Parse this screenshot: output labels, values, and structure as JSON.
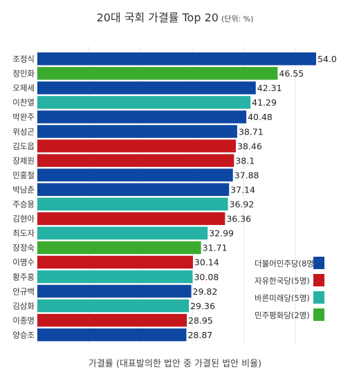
{
  "chart_data": {
    "type": "bar",
    "orientation": "horizontal",
    "title": "20대 국회 가결률 Top 20",
    "subtitle": "(단위: %)",
    "xlabel": "가결률 (대표발의한 법안 중 가결된 법안 비율)",
    "ylabel": "",
    "xlim": [
      0,
      55
    ],
    "grid": true,
    "legend_position": "bottom-right",
    "parties": [
      {
        "name": "더불어민주당(8명)",
        "color": "#0d47a1"
      },
      {
        "name": "자유한국당(5명)",
        "color": "#c6171e"
      },
      {
        "name": "바른미래당(5명)",
        "color": "#26b2a5"
      },
      {
        "name": "민주평화당(2명)",
        "color": "#3aab2e"
      }
    ],
    "categories": [
      "조정식",
      "정인화",
      "오제세",
      "이찬열",
      "박완주",
      "위성곤",
      "김도읍",
      "장제원",
      "민홍철",
      "박남춘",
      "주승용",
      "김현아",
      "최도자",
      "장정숙",
      "이명수",
      "황주홍",
      "안규백",
      "김삼화",
      "이종명",
      "양승조"
    ],
    "values": [
      54.0,
      46.55,
      42.31,
      41.29,
      40.48,
      38.71,
      38.46,
      38.1,
      37.88,
      37.14,
      36.92,
      36.36,
      32.99,
      31.71,
      30.14,
      30.08,
      29.82,
      29.36,
      28.95,
      28.87
    ],
    "value_labels": [
      "54.0",
      "46.55",
      "42.31",
      "41.29",
      "40.48",
      "38.71",
      "38.46",
      "38.1",
      "37.88",
      "37.14",
      "36.92",
      "36.36",
      "32.99",
      "31.71",
      "30.14",
      "30.08",
      "29.82",
      "29.36",
      "28.95",
      "28.87"
    ],
    "party_index": [
      0,
      3,
      0,
      2,
      0,
      0,
      1,
      1,
      0,
      0,
      2,
      1,
      2,
      3,
      1,
      2,
      0,
      2,
      1,
      0
    ]
  }
}
